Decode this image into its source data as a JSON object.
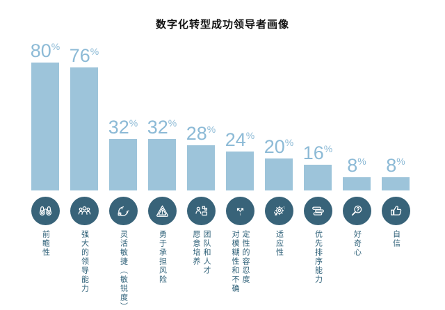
{
  "title": "数字化转型成功领导者画像",
  "percent_sign": "%",
  "colors": {
    "bar": "#9DC4DA",
    "percent_text": "#8CBAD6",
    "icon_circle": "#386379",
    "label_text": "#2E6078",
    "title_text": "#111111"
  },
  "chart_data": {
    "type": "bar",
    "title": "数字化转型成功领导者画像",
    "categories": [
      "前瞻性",
      "强大的领导能力",
      "灵活敏捷（敏锐度）",
      "勇于承担风险",
      "愿意培养团队和人才",
      "对模糊性和不确定性的容忍度",
      "适应性",
      "优先排序能力",
      "好奇心",
      "自信"
    ],
    "values": [
      80,
      76,
      32,
      32,
      28,
      24,
      20,
      16,
      8,
      8
    ],
    "unit": "%",
    "xlabel": "",
    "ylabel": "",
    "ylim": [
      0,
      100
    ],
    "grid": false,
    "legend": false,
    "bar_color": "#9DC4DA",
    "icons": [
      "binoculars",
      "team",
      "agile-cycle",
      "warning-triangle",
      "people-gear",
      "diverging-arrows",
      "gear-sync",
      "stacked-list",
      "magnifier-question",
      "thumbs-up"
    ]
  },
  "bars": [
    {
      "value": 80,
      "label": "前瞻性"
    },
    {
      "value": 76,
      "label": "强大的领导能力"
    },
    {
      "value": 32,
      "label": "灵活敏捷（敏锐度）"
    },
    {
      "value": 32,
      "label": "勇于承担风险"
    },
    {
      "value": 28,
      "label": "愿意培养\n团队和人才"
    },
    {
      "value": 24,
      "label": "对模糊性和不确\n定性的容忍度"
    },
    {
      "value": 20,
      "label": "适应性"
    },
    {
      "value": 16,
      "label": "优先排序能力"
    },
    {
      "value": 8,
      "label": "好奇心"
    },
    {
      "value": 8,
      "label": "自信"
    }
  ]
}
